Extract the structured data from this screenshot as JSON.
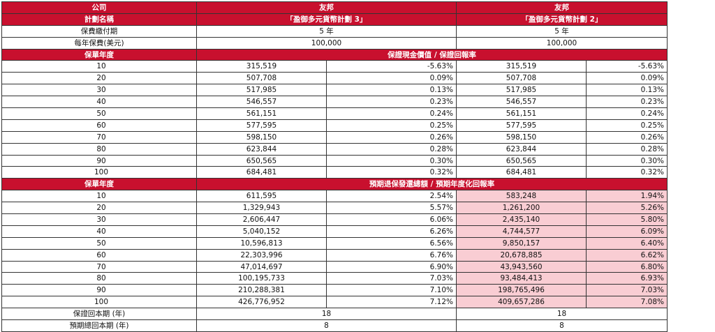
{
  "header": {
    "company_label": "公司",
    "plan_label": "計劃名稱",
    "payment_term_label": "保費繳付期",
    "annual_premium_label": "每年保費(美元)",
    "plans": [
      {
        "company": "友邦",
        "plan_name": "「盈御多元貨幣計劃 3」",
        "payment_term": "5 年",
        "annual_premium": "100,000"
      },
      {
        "company": "友邦",
        "plan_name": "「盈御多元貨幣計劃 2」",
        "payment_term": "5 年",
        "annual_premium": "100,000"
      }
    ]
  },
  "guaranteed": {
    "year_label": "保單年度",
    "section_title": "保證現金價值 / 保證回報率",
    "rows": [
      {
        "year": "10",
        "p1_value": "315,519",
        "p1_rate": "-5.63%",
        "p2_value": "315,519",
        "p2_rate": "-5.63%"
      },
      {
        "year": "20",
        "p1_value": "507,708",
        "p1_rate": "0.09%",
        "p2_value": "507,708",
        "p2_rate": "0.09%"
      },
      {
        "year": "30",
        "p1_value": "517,985",
        "p1_rate": "0.13%",
        "p2_value": "517,985",
        "p2_rate": "0.13%"
      },
      {
        "year": "40",
        "p1_value": "546,557",
        "p1_rate": "0.23%",
        "p2_value": "546,557",
        "p2_rate": "0.23%"
      },
      {
        "year": "50",
        "p1_value": "561,151",
        "p1_rate": "0.24%",
        "p2_value": "561,151",
        "p2_rate": "0.24%"
      },
      {
        "year": "60",
        "p1_value": "577,595",
        "p1_rate": "0.25%",
        "p2_value": "577,595",
        "p2_rate": "0.25%"
      },
      {
        "year": "70",
        "p1_value": "598,150",
        "p1_rate": "0.26%",
        "p2_value": "598,150",
        "p2_rate": "0.26%"
      },
      {
        "year": "80",
        "p1_value": "623,844",
        "p1_rate": "0.28%",
        "p2_value": "623,844",
        "p2_rate": "0.28%"
      },
      {
        "year": "90",
        "p1_value": "650,565",
        "p1_rate": "0.30%",
        "p2_value": "650,565",
        "p2_rate": "0.30%"
      },
      {
        "year": "100",
        "p1_value": "684,481",
        "p1_rate": "0.32%",
        "p2_value": "684,481",
        "p2_rate": "0.32%"
      }
    ]
  },
  "projected": {
    "year_label": "保單年度",
    "section_title": "預期退保發還總額 / 預期年度化回報率",
    "highlight_color": "#f9cdd3",
    "rows": [
      {
        "year": "10",
        "p1_value": "611,595",
        "p1_rate": "2.54%",
        "p2_value": "583,248",
        "p2_rate": "1.94%"
      },
      {
        "year": "20",
        "p1_value": "1,329,943",
        "p1_rate": "5.57%",
        "p2_value": "1,261,200",
        "p2_rate": "5.26%"
      },
      {
        "year": "30",
        "p1_value": "2,606,447",
        "p1_rate": "6.06%",
        "p2_value": "2,435,140",
        "p2_rate": "5.80%"
      },
      {
        "year": "40",
        "p1_value": "5,040,152",
        "p1_rate": "6.26%",
        "p2_value": "4,744,577",
        "p2_rate": "6.09%"
      },
      {
        "year": "50",
        "p1_value": "10,596,813",
        "p1_rate": "6.56%",
        "p2_value": "9,850,157",
        "p2_rate": "6.40%"
      },
      {
        "year": "60",
        "p1_value": "22,303,996",
        "p1_rate": "6.76%",
        "p2_value": "20,678,885",
        "p2_rate": "6.62%"
      },
      {
        "year": "70",
        "p1_value": "47,014,697",
        "p1_rate": "6.90%",
        "p2_value": "43,943,560",
        "p2_rate": "6.80%"
      },
      {
        "year": "80",
        "p1_value": "100,195,733",
        "p1_rate": "7.03%",
        "p2_value": "93,484,413",
        "p2_rate": "6.93%"
      },
      {
        "year": "90",
        "p1_value": "210,288,381",
        "p1_rate": "7.10%",
        "p2_value": "198,765,496",
        "p2_rate": "7.03%"
      },
      {
        "year": "100",
        "p1_value": "426,776,952",
        "p1_rate": "7.12%",
        "p2_value": "409,657,286",
        "p2_rate": "7.08%"
      }
    ]
  },
  "footer": {
    "guaranteed_breakeven_label": "保證回本期 (年)",
    "projected_breakeven_label": "預期總回本期 (年)",
    "p1_guaranteed_breakeven": "18",
    "p2_guaranteed_breakeven": "18",
    "p1_projected_breakeven": "8",
    "p2_projected_breakeven": "8"
  },
  "colors": {
    "header_red": "#c8102e",
    "highlight_pink": "#f9cdd3"
  }
}
